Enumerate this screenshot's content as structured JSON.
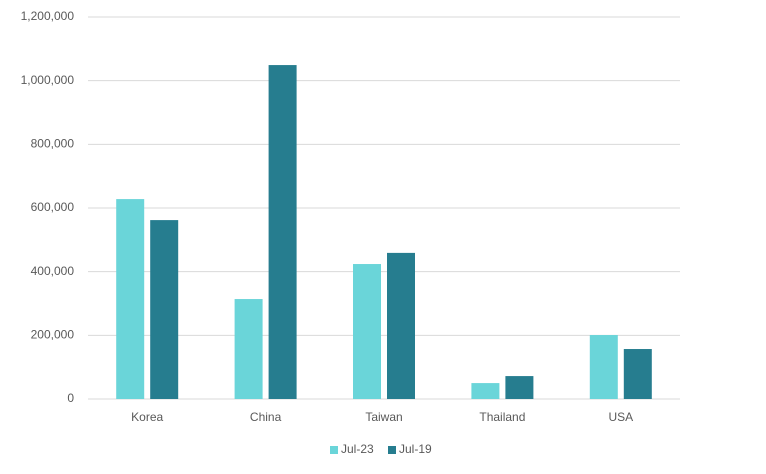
{
  "chart_data": {
    "type": "bar",
    "categories": [
      "Korea",
      "China",
      "Taiwan",
      "Thailand",
      "USA"
    ],
    "series": [
      {
        "name": "Jul-23",
        "color": "#6ad5d9",
        "values": [
          628000,
          314000,
          424000,
          50000,
          201000
        ]
      },
      {
        "name": "Jul-19",
        "color": "#267d8f",
        "values": [
          562000,
          1049000,
          459000,
          72000,
          157000
        ]
      }
    ],
    "ylim": [
      0,
      1200000
    ],
    "yticks": [
      0,
      {
        "value": 200000,
        "label": "200,000"
      },
      {
        "value": 400000,
        "label": "400,000"
      },
      {
        "value": 600000,
        "label": "600,000"
      },
      {
        "value": 800000,
        "label": "800,000"
      },
      {
        "value": 1000000,
        "label": "1,000,000"
      },
      {
        "value": 1200000,
        "label": "1,200,000"
      }
    ],
    "grid": true,
    "legend": "bottom"
  }
}
